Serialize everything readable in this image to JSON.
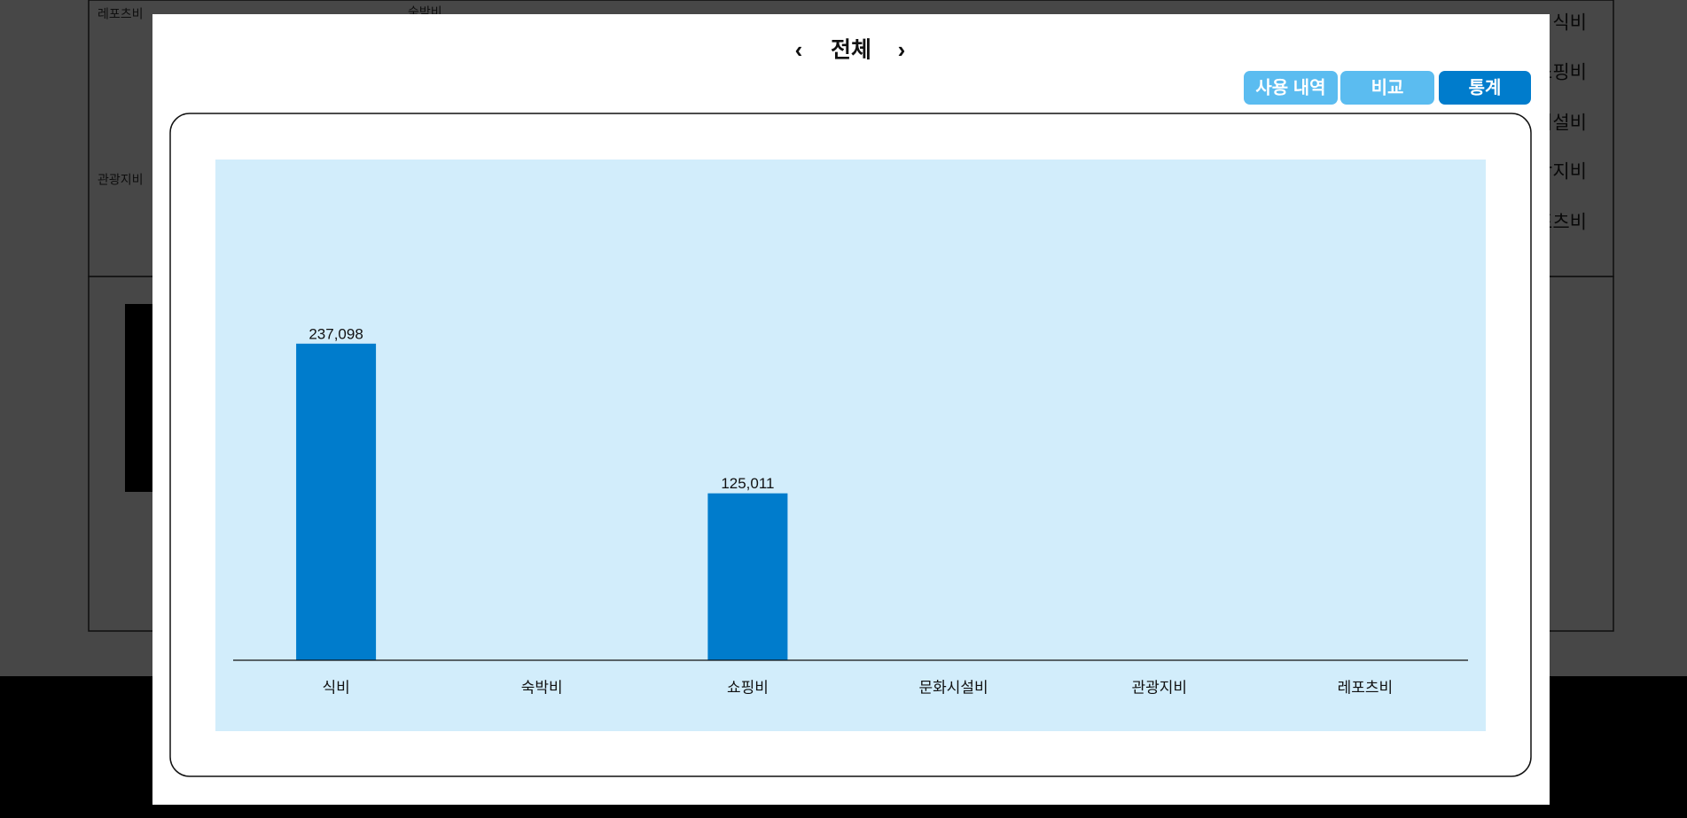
{
  "background": {
    "legend": [
      "식비",
      "쇼핑비",
      "문화시설비",
      "관광지비",
      "레포츠비"
    ],
    "labels": [
      "레포츠비",
      "관광지비",
      "숙박비"
    ]
  },
  "modal": {
    "title": "전체",
    "prev": "‹",
    "next": "›",
    "tabs": [
      "사용 내역",
      "비교",
      "통계"
    ],
    "active_tab": 2
  },
  "chart_data": {
    "type": "bar",
    "categories": [
      "식비",
      "숙박비",
      "쇼핑비",
      "문화시설비",
      "관광지비",
      "레포츠비"
    ],
    "values": [
      237098,
      0,
      125011,
      0,
      0,
      0
    ],
    "value_labels": [
      "237,098",
      null,
      "125,011",
      null,
      null,
      null
    ],
    "color": "#007ccc",
    "background": "#d2edfb",
    "ylim": [
      0,
      375000
    ]
  }
}
